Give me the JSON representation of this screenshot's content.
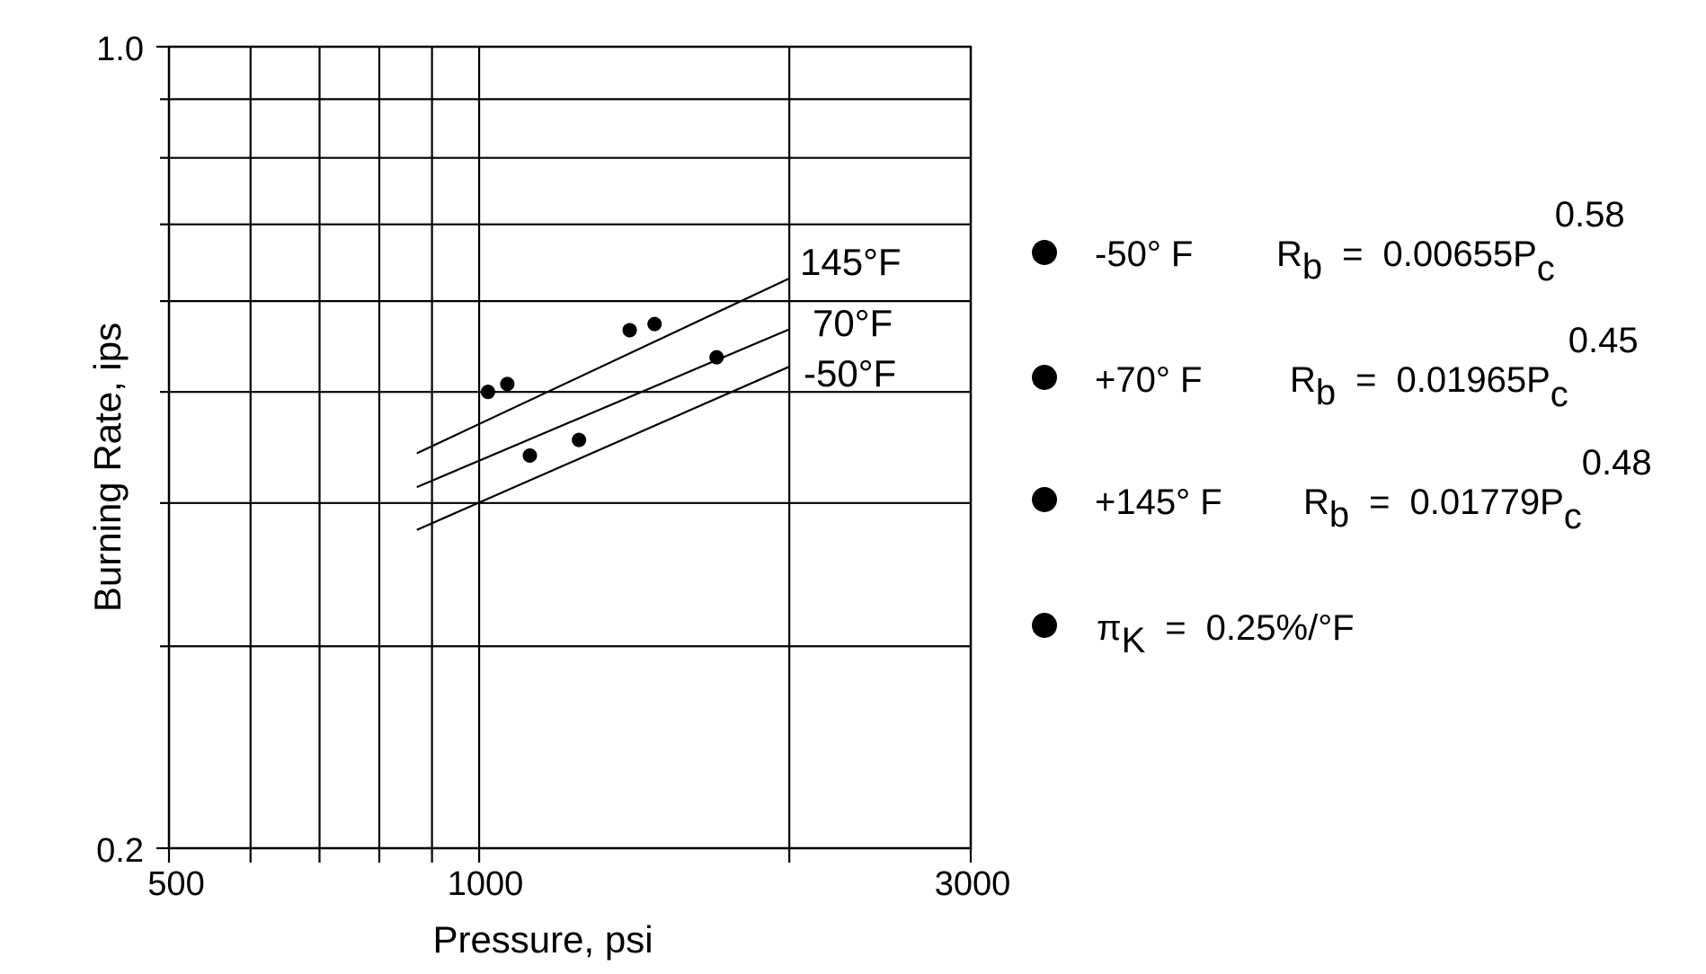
{
  "chart_data": {
    "type": "scatter",
    "xlabel": "Pressure, psi",
    "ylabel": "Burning Rate, ips",
    "xscale": "log",
    "yscale": "log",
    "xlim": [
      500,
      3000
    ],
    "ylim": [
      0.2,
      1.0
    ],
    "x_tick_labels": [
      "500",
      "1000",
      "3000"
    ],
    "y_tick_labels": [
      "1.0",
      "0.2"
    ],
    "grid": true,
    "series": [
      {
        "name": "145°F",
        "line": [
          [
            870,
            0.442
          ],
          [
            2000,
            0.628
          ]
        ],
        "points": [
          [
            1020,
            0.5
          ],
          [
            1065,
            0.508
          ],
          [
            1400,
            0.566
          ],
          [
            1480,
            0.573
          ]
        ]
      },
      {
        "name": "70°F",
        "line": [
          [
            870,
            0.413
          ],
          [
            2000,
            0.567
          ]
        ],
        "points": [
          [
            1700,
            0.536
          ]
        ]
      },
      {
        "name": "-50°F",
        "line": [
          [
            870,
            0.379
          ],
          [
            2000,
            0.526
          ]
        ],
        "points": [
          [
            1120,
            0.44
          ],
          [
            1250,
            0.454
          ]
        ]
      }
    ]
  },
  "legend": [
    {
      "temp": "-50° F",
      "lhs_main": "R",
      "lhs_sub": "b",
      "eq": "=",
      "coef": "0.00655P",
      "var_sub": "c",
      "exp": "0.58"
    },
    {
      "temp": "+70° F",
      "lhs_main": "R",
      "lhs_sub": "b",
      "eq": "=",
      "coef": "0.01965P",
      "var_sub": "c",
      "exp": "0.45"
    },
    {
      "temp": "+145° F",
      "lhs_main": "R",
      "lhs_sub": "b",
      "eq": "=",
      "coef": "0.01779P",
      "var_sub": "c",
      "exp": "0.48"
    }
  ],
  "pi_note": {
    "sym": "π",
    "sub": "K",
    "eq": "=",
    "value": "0.25%/°F"
  },
  "colors": {
    "ink": "#000000",
    "background": "#ffffff"
  }
}
